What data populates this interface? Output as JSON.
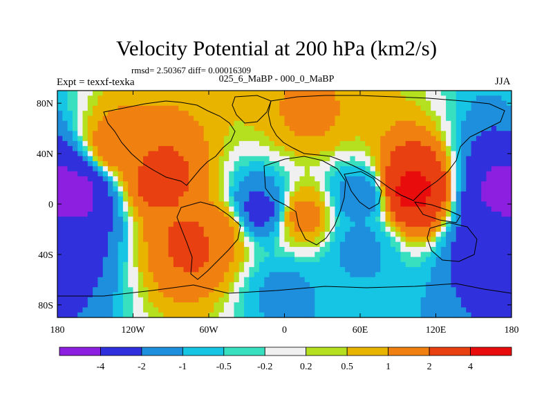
{
  "title": "Velocity Potential at 200 hPa (km2/s)",
  "stats_text": "rmsd= 2.50367 diff= 0.00016309",
  "left_label": "Expt = texxf-texka",
  "center_label": "025_6_MaBP - 000_0_MaBP",
  "season": "JJA",
  "chart_data": {
    "type": "heatmap",
    "title": "Velocity Potential at 200 hPa (km2/s)",
    "xlim": [
      -180,
      180
    ],
    "ylim": [
      -90,
      90
    ],
    "x_ticks": [
      {
        "value": -180,
        "label": "180"
      },
      {
        "value": -120,
        "label": "120W"
      },
      {
        "value": -60,
        "label": "60W"
      },
      {
        "value": 0,
        "label": "0"
      },
      {
        "value": 60,
        "label": "60E"
      },
      {
        "value": 120,
        "label": "120E"
      },
      {
        "value": 180,
        "label": "180"
      }
    ],
    "y_ticks": [
      {
        "value": 80,
        "label": "80N"
      },
      {
        "value": 40,
        "label": "40N"
      },
      {
        "value": 0,
        "label": "0"
      },
      {
        "value": -40,
        "label": "40S"
      },
      {
        "value": -80,
        "label": "80S"
      }
    ],
    "levels": [
      "-4",
      "-2",
      "-1",
      "-0.5",
      "-0.2",
      "0.2",
      "0.5",
      "1",
      "2",
      "4"
    ],
    "colors": [
      "#8c1fe0",
      "#3030dc",
      "#1e8fdc",
      "#16c4e4",
      "#38e0c0",
      "#f0f0f0",
      "#b4e020",
      "#e8b400",
      "#f08010",
      "#e84010",
      "#e80c0c"
    ],
    "regions": [
      {
        "lon": -100,
        "lat": 20,
        "value": 2.6
      },
      {
        "lon": -135,
        "lat": 45,
        "value": 1.5
      },
      {
        "lon": -70,
        "lat": -30,
        "value": 2.5
      },
      {
        "lon": -50,
        "lat": -20,
        "value": 1.2
      },
      {
        "lon": -20,
        "lat": -5,
        "value": -2.5
      },
      {
        "lon": 15,
        "lat": -10,
        "value": 1.3
      },
      {
        "lon": 100,
        "lat": 10,
        "value": 4.5
      },
      {
        "lon": 60,
        "lat": 5,
        "value": -1.5
      },
      {
        "lon": -165,
        "lat": 10,
        "value": -4.5
      },
      {
        "lon": 175,
        "lat": 10,
        "value": -4.5
      },
      {
        "lon": 170,
        "lat": -30,
        "value": -3.5
      },
      {
        "lon": 60,
        "lat": -35,
        "value": -1.2
      },
      {
        "lon": 0,
        "lat": -70,
        "value": -1.2
      },
      {
        "lon": 20,
        "lat": 70,
        "value": 1.1
      }
    ]
  }
}
